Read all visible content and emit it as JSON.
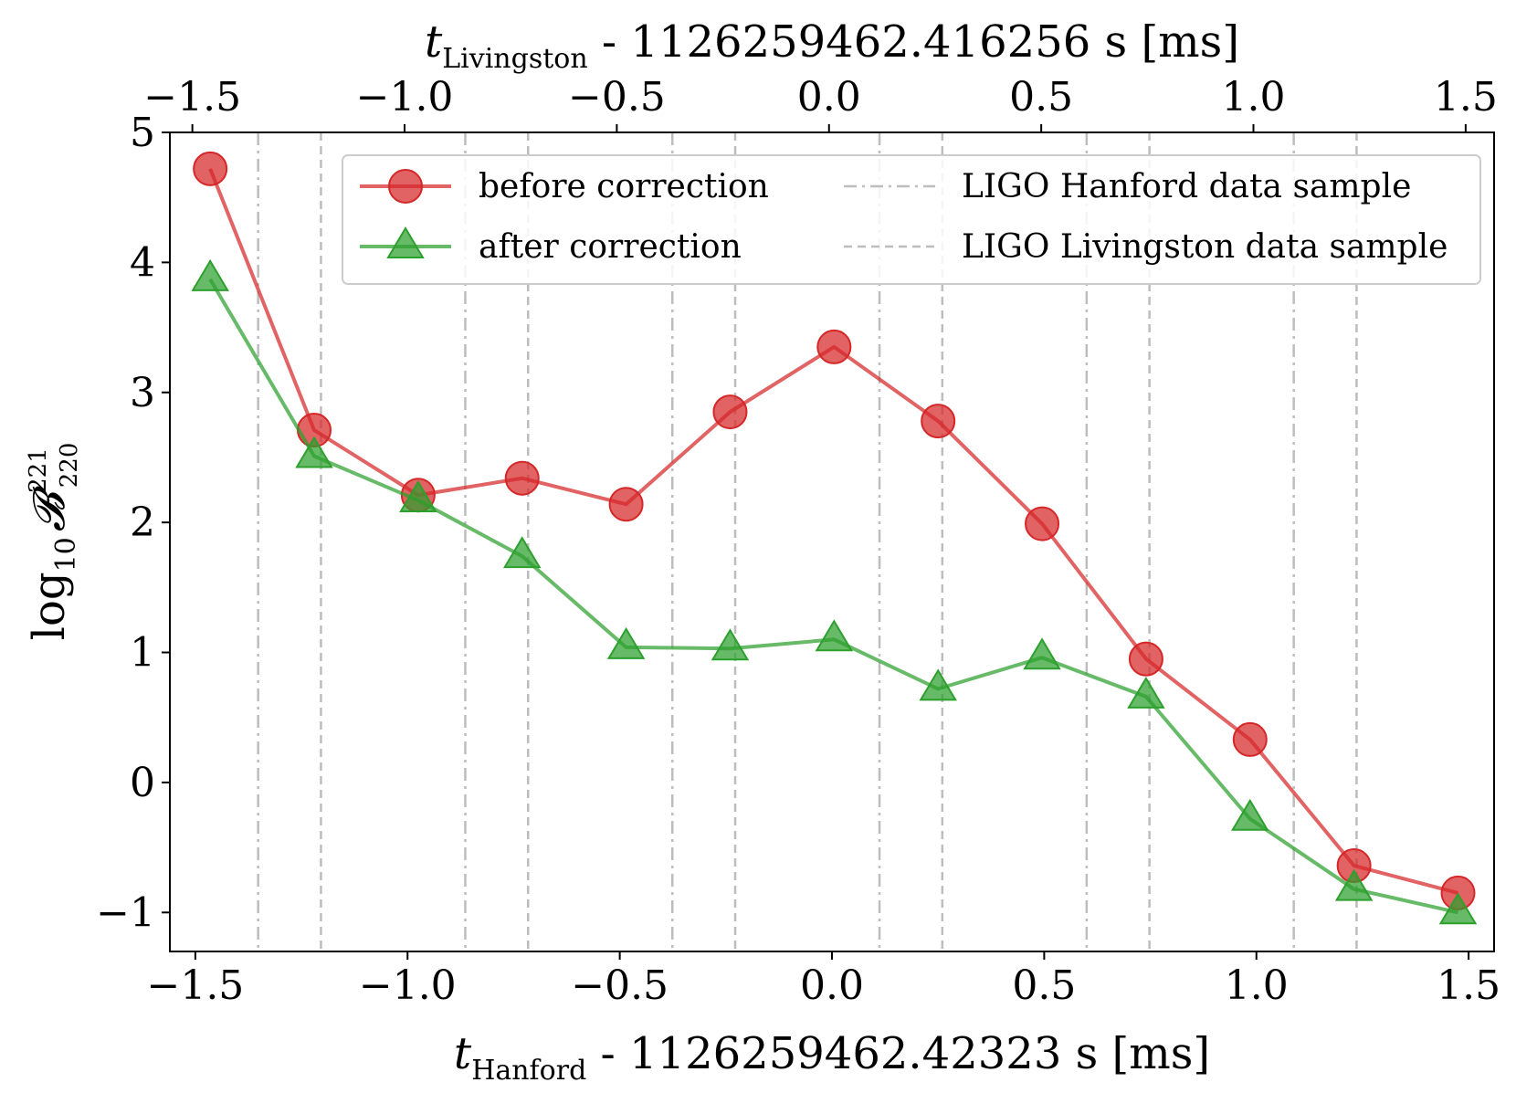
{
  "chart_data": {
    "type": "line",
    "xlabel": {
      "italic": "t",
      "subscript": "Hanford",
      "rest": " - 1126259462.42323 s [ms]"
    },
    "x2label": {
      "italic": "t",
      "subscript": "Livingston",
      "rest": " - 1126259462.416256 s [ms]"
    },
    "ylabel": {
      "prefix": "log",
      "prefix_sub": "10",
      "symbol": "𝓑",
      "sup": "221",
      "sub": "220"
    },
    "xlim": [
      -1.56,
      1.56
    ],
    "ylim": [
      -1.3,
      5.0
    ],
    "x_ticks": [
      -1.5,
      -1.0,
      -0.5,
      0.0,
      0.5,
      1.0,
      1.5
    ],
    "x_tick_labels": [
      "−1.5",
      "−1.0",
      "−0.5",
      "0.0",
      "0.5",
      "1.0",
      "1.5"
    ],
    "x2_ticks": [
      -1.5,
      -1.0,
      -0.5,
      0.0,
      0.5,
      1.0,
      1.5
    ],
    "x2_tick_labels": [
      "−1.5",
      "−1.0",
      "−0.5",
      "0.0",
      "0.5",
      "1.0",
      "1.5"
    ],
    "x2_offset": 0.006974,
    "y_ticks": [
      -1,
      0,
      1,
      2,
      3,
      4,
      5
    ],
    "y_tick_labels": [
      "−1",
      "0",
      "1",
      "2",
      "3",
      "4",
      "5"
    ],
    "grid": false,
    "legend_position": "top-right",
    "series": [
      {
        "name": "before correction",
        "marker": "circle",
        "color": "#d62728",
        "x": [
          -1.465,
          -1.22,
          -0.975,
          -0.73,
          -0.485,
          -0.24,
          0.005,
          0.25,
          0.495,
          0.74,
          0.985,
          1.23,
          1.475
        ],
        "y": [
          4.72,
          2.71,
          2.21,
          2.34,
          2.14,
          2.85,
          3.35,
          2.78,
          1.99,
          0.95,
          0.33,
          -0.64,
          -0.85
        ]
      },
      {
        "name": "after correction",
        "marker": "triangle",
        "color": "#2ca02c",
        "x": [
          -1.465,
          -1.22,
          -0.975,
          -0.73,
          -0.485,
          -0.24,
          0.005,
          0.25,
          0.495,
          0.74,
          0.985,
          1.23,
          1.475
        ],
        "y": [
          3.87,
          2.51,
          2.17,
          1.74,
          1.04,
          1.03,
          1.1,
          0.72,
          0.96,
          0.66,
          -0.28,
          -0.82,
          -1.0
        ]
      }
    ],
    "reference_lines": [
      {
        "name": "LIGO Hanford data sample",
        "style": "dashdot",
        "color": "#bdbdbd",
        "x": [
          -1.352,
          -0.864,
          -0.376,
          0.112,
          0.6,
          1.088
        ]
      },
      {
        "name": "LIGO Livingston data sample",
        "style": "dashed",
        "color": "#bdbdbd",
        "x": [
          -1.204,
          -0.716,
          -0.228,
          0.26,
          0.748,
          1.236
        ]
      }
    ],
    "legend": {
      "items": [
        {
          "label": "before correction",
          "kind": "series",
          "ref": 0
        },
        {
          "label": "after correction",
          "kind": "series",
          "ref": 1
        },
        {
          "label": "LIGO Hanford data sample",
          "kind": "vline",
          "ref": 0
        },
        {
          "label": "LIGO Livingston data sample",
          "kind": "vline",
          "ref": 1
        }
      ]
    }
  }
}
